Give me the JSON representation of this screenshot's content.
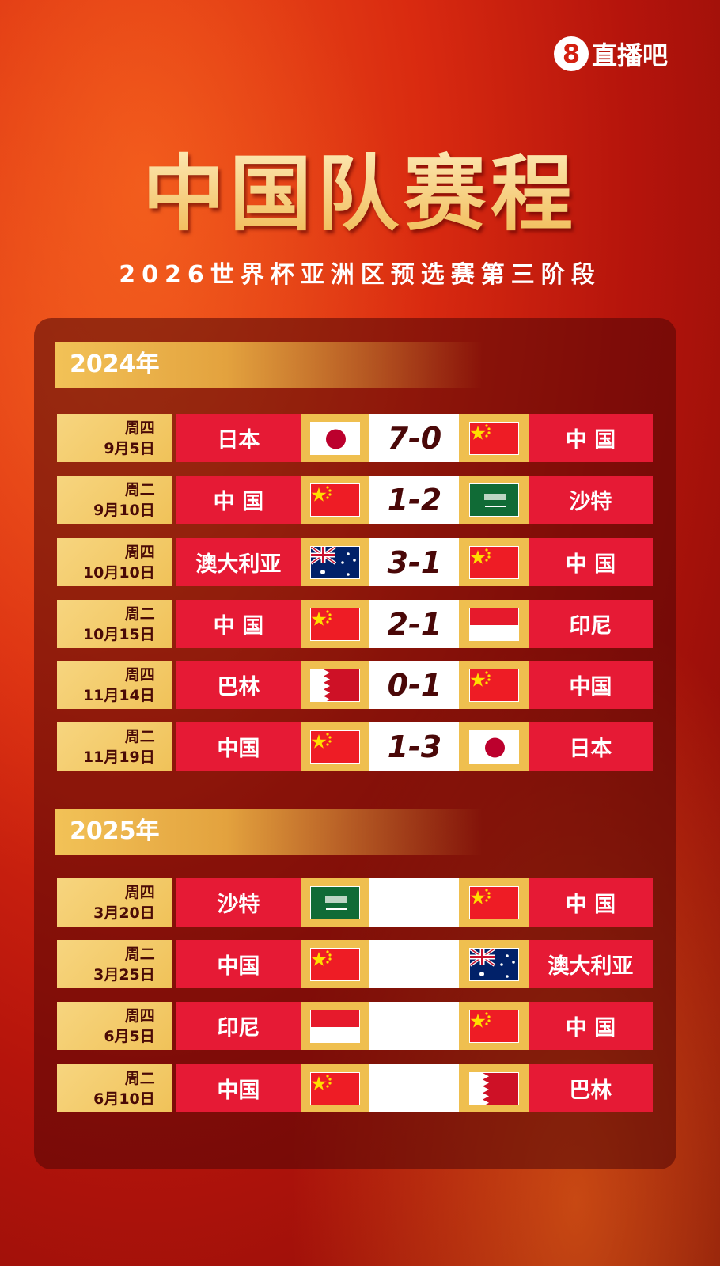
{
  "logo": {
    "mark": "8",
    "text": "直播吧"
  },
  "title": "中国队赛程",
  "subtitle": "2026世界杯亚洲区预选赛第三阶段",
  "sections": [
    {
      "year": "2024年",
      "matches": [
        {
          "weekday": "周四",
          "date": "9月5日",
          "home": "日本",
          "home_flag": "japan",
          "score": "7-0",
          "away_flag": "china",
          "away": "中 国"
        },
        {
          "weekday": "周二",
          "date": "9月10日",
          "home": "中 国",
          "home_flag": "china",
          "score": "1-2",
          "away_flag": "saudi",
          "away": "沙特"
        },
        {
          "weekday": "周四",
          "date": "10月10日",
          "home": "澳大利亚",
          "home_flag": "australia",
          "score": "3-1",
          "away_flag": "china",
          "away": "中 国"
        },
        {
          "weekday": "周二",
          "date": "10月15日",
          "home": "中 国",
          "home_flag": "china",
          "score": "2-1",
          "away_flag": "indonesia",
          "away": "印尼"
        },
        {
          "weekday": "周四",
          "date": "11月14日",
          "home": "巴林",
          "home_flag": "bahrain",
          "score": "0-1",
          "away_flag": "china",
          "away": "中国"
        },
        {
          "weekday": "周二",
          "date": "11月19日",
          "home": "中国",
          "home_flag": "china",
          "score": "1-3",
          "away_flag": "japan",
          "away": "日本"
        }
      ]
    },
    {
      "year": "2025年",
      "matches": [
        {
          "weekday": "周四",
          "date": "3月20日",
          "home": "沙特",
          "home_flag": "saudi",
          "score": "",
          "away_flag": "china",
          "away": "中 国"
        },
        {
          "weekday": "周二",
          "date": "3月25日",
          "home": "中国",
          "home_flag": "china",
          "score": "",
          "away_flag": "australia",
          "away": "澳大利亚"
        },
        {
          "weekday": "周四",
          "date": "6月5日",
          "home": "印尼",
          "home_flag": "indonesia",
          "score": "",
          "away_flag": "china",
          "away": "中 国"
        },
        {
          "weekday": "周二",
          "date": "6月10日",
          "home": "中国",
          "home_flag": "china",
          "score": "",
          "away_flag": "bahrain",
          "away": "巴林"
        }
      ]
    }
  ],
  "colors": {
    "team_cell": "#e61a35",
    "date_cell": "#f0c259",
    "flag_cell": "#efbf4f",
    "score_text": "#4a0808"
  }
}
